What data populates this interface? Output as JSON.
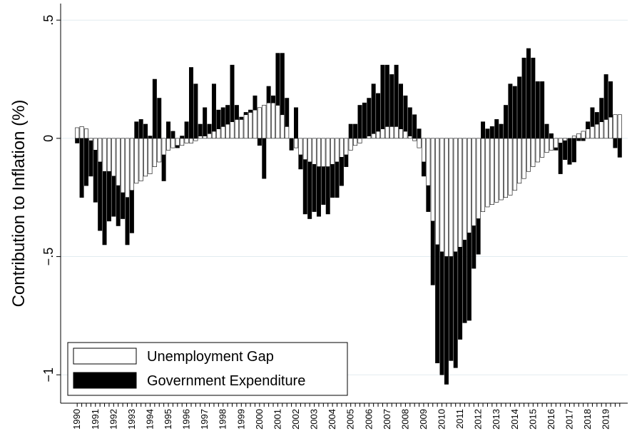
{
  "chart_data": {
    "type": "bar",
    "stacked": true,
    "y_label": "Contribution to Inflation (%)",
    "categories": [
      "1990",
      null,
      null,
      null,
      "1991",
      null,
      null,
      null,
      "1992",
      null,
      null,
      null,
      "1993",
      null,
      null,
      null,
      "1994",
      null,
      null,
      null,
      "1995",
      null,
      null,
      null,
      "1996",
      null,
      null,
      null,
      "1997",
      null,
      null,
      null,
      "1998",
      null,
      null,
      null,
      "1999",
      null,
      null,
      null,
      "2000",
      null,
      null,
      null,
      "2001",
      null,
      null,
      null,
      "2002",
      null,
      null,
      null,
      "2003",
      null,
      null,
      null,
      "2004",
      null,
      null,
      null,
      "2005",
      null,
      null,
      null,
      "2006",
      null,
      null,
      null,
      "2007",
      null,
      null,
      null,
      "2008",
      null,
      null,
      null,
      "2009",
      null,
      null,
      null,
      "2010",
      null,
      null,
      null,
      "2011",
      null,
      null,
      null,
      "2012",
      null,
      null,
      null,
      "2013",
      null,
      null,
      null,
      "2014",
      null,
      null,
      null,
      "2015",
      null,
      null,
      null,
      "2016",
      null,
      null,
      null,
      "2017",
      null,
      null,
      null,
      "2018",
      null,
      null,
      null,
      "2019",
      null,
      null,
      null
    ],
    "series": [
      {
        "name": "Unemployment Gap",
        "color": "#ffffff",
        "values": [
          0.045,
          0.05,
          0.04,
          -0.01,
          -0.05,
          -0.1,
          -0.14,
          -0.14,
          -0.16,
          -0.2,
          -0.23,
          -0.25,
          -0.22,
          -0.19,
          -0.18,
          -0.16,
          -0.15,
          -0.12,
          -0.1,
          -0.07,
          -0.05,
          -0.04,
          -0.03,
          -0.03,
          -0.02,
          -0.02,
          -0.01,
          0.01,
          0.01,
          0.02,
          0.03,
          0.04,
          0.05,
          0.06,
          0.07,
          0.08,
          0.08,
          0.1,
          0.11,
          0.12,
          0.13,
          0.14,
          0.15,
          0.15,
          0.14,
          0.1,
          0.05,
          0.0,
          -0.04,
          -0.07,
          -0.09,
          -0.1,
          -0.11,
          -0.12,
          -0.12,
          -0.12,
          -0.11,
          -0.1,
          -0.08,
          -0.07,
          -0.05,
          -0.03,
          -0.02,
          0.0,
          0.01,
          0.02,
          0.03,
          0.04,
          0.05,
          0.05,
          0.05,
          0.04,
          0.03,
          0.01,
          -0.01,
          -0.04,
          -0.1,
          -0.2,
          -0.35,
          -0.45,
          -0.48,
          -0.5,
          -0.5,
          -0.48,
          -0.46,
          -0.43,
          -0.4,
          -0.37,
          -0.34,
          -0.31,
          -0.29,
          -0.28,
          -0.27,
          -0.26,
          -0.25,
          -0.24,
          -0.22,
          -0.19,
          -0.17,
          -0.14,
          -0.12,
          -0.1,
          -0.08,
          -0.06,
          -0.05,
          -0.04,
          -0.02,
          -0.01,
          0.0,
          0.01,
          0.02,
          0.03,
          0.04,
          0.05,
          0.06,
          0.07,
          0.08,
          0.09,
          0.1,
          0.1
        ]
      },
      {
        "name": "Government Expenditure",
        "color": "#000000",
        "values": [
          -0.02,
          -0.25,
          -0.2,
          -0.15,
          -0.22,
          -0.29,
          -0.31,
          -0.21,
          -0.17,
          -0.17,
          -0.11,
          -0.2,
          -0.18,
          0.07,
          0.08,
          0.06,
          0.01,
          0.25,
          0.17,
          -0.11,
          0.07,
          0.03,
          -0.01,
          0.01,
          0.07,
          0.3,
          0.23,
          0.05,
          0.12,
          0.04,
          0.2,
          0.08,
          0.08,
          0.08,
          0.24,
          0.06,
          0.01,
          0.01,
          0.01,
          0.06,
          -0.03,
          -0.17,
          0.07,
          0.03,
          0.22,
          0.26,
          0.12,
          -0.05,
          0.13,
          -0.06,
          -0.23,
          -0.24,
          -0.2,
          -0.21,
          -0.16,
          -0.2,
          -0.14,
          -0.15,
          -0.12,
          -0.05,
          0.06,
          0.06,
          0.14,
          0.15,
          0.16,
          0.21,
          0.16,
          0.27,
          0.26,
          0.22,
          0.26,
          0.19,
          0.15,
          0.12,
          0.1,
          0.04,
          -0.06,
          -0.11,
          -0.27,
          -0.5,
          -0.52,
          -0.54,
          -0.44,
          -0.49,
          -0.39,
          -0.35,
          -0.37,
          -0.18,
          -0.15,
          0.07,
          0.04,
          0.05,
          0.08,
          0.06,
          0.14,
          0.23,
          0.22,
          0.26,
          0.34,
          0.38,
          0.34,
          0.24,
          0.24,
          0.06,
          0.02,
          -0.01,
          -0.13,
          -0.08,
          -0.11,
          -0.1,
          -0.01,
          -0.01,
          0.03,
          0.08,
          0.05,
          0.1,
          0.19,
          0.15,
          -0.04,
          -0.08
        ]
      }
    ],
    "ylim": [
      -1.12,
      0.57
    ],
    "yticks": [
      {
        "value": -1,
        "label": "−1"
      },
      {
        "value": -0.5,
        "label": "−.5"
      },
      0,
      {
        "value": 0.5,
        "label": ".5"
      }
    ],
    "grid": true,
    "legend": "lower-left"
  }
}
